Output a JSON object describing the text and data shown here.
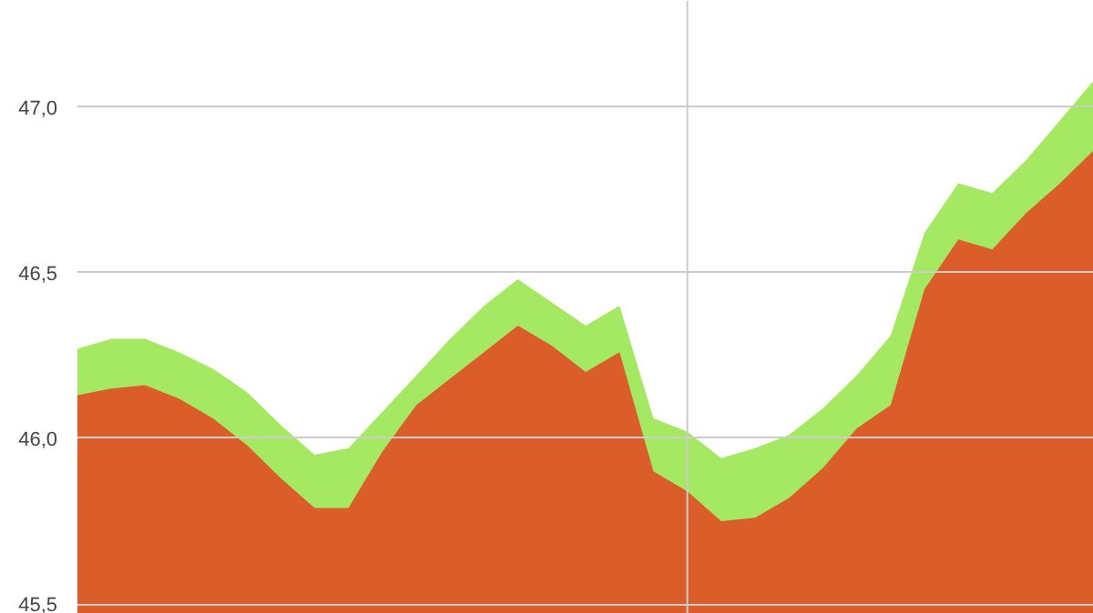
{
  "chart_data": {
    "type": "area",
    "categories": [
      null,
      null,
      null,
      null,
      null,
      null,
      null,
      null,
      null,
      null,
      null,
      null,
      null,
      null,
      null,
      null,
      null,
      null,
      null,
      null,
      null,
      null,
      null,
      null,
      null,
      null,
      null,
      null,
      null,
      null,
      null
    ],
    "series": [
      {
        "color": "#a5e862",
        "values": [
          46.27,
          46.3,
          46.3,
          46.26,
          46.21,
          46.14,
          46.04,
          45.95,
          45.97,
          46.08,
          46.19,
          46.3,
          46.4,
          46.48,
          46.41,
          46.34,
          46.4,
          46.06,
          46.02,
          45.94,
          45.97,
          46.01,
          46.09,
          46.19,
          46.31,
          46.62,
          46.77,
          46.74,
          46.84,
          46.96,
          47.08
        ]
      },
      {
        "color": "#db5e2a",
        "values": [
          46.13,
          46.15,
          46.16,
          46.12,
          46.06,
          45.98,
          45.88,
          45.79,
          45.79,
          45.96,
          46.1,
          46.18,
          46.26,
          46.34,
          46.28,
          46.2,
          46.26,
          45.9,
          45.84,
          45.75,
          45.76,
          45.82,
          45.91,
          46.03,
          46.1,
          46.45,
          46.6,
          46.57,
          46.68,
          46.77,
          46.87
        ]
      }
    ],
    "ylim": [
      45.47,
      47.32
    ],
    "yticks": [
      {
        "value": 45.5,
        "label": "45,5"
      },
      {
        "value": 46.0,
        "label": "46,0"
      },
      {
        "value": 46.5,
        "label": "46,5"
      },
      {
        "value": 47.0,
        "label": "47,0"
      }
    ],
    "grid": "y"
  }
}
